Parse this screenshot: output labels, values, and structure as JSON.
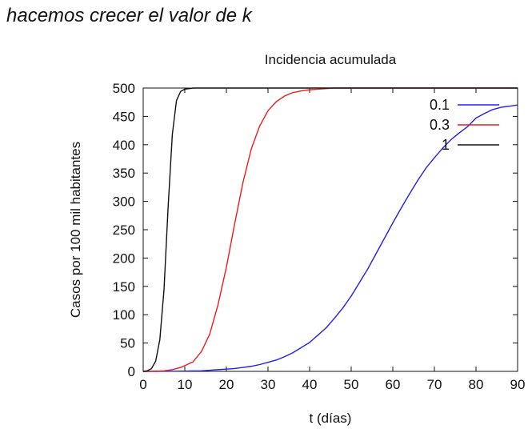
{
  "page": {
    "heading": "hacemos crecer el valor de k"
  },
  "chart_data": {
    "type": "line",
    "title": "Incidencia acumulada",
    "xlabel": "t (días)",
    "ylabel": "Casos por 100 mil habitantes",
    "xlim": [
      0,
      90
    ],
    "ylim": [
      0,
      500
    ],
    "xticks": [
      0,
      10,
      20,
      30,
      40,
      50,
      60,
      70,
      80,
      90
    ],
    "yticks": [
      0,
      50,
      100,
      150,
      200,
      250,
      300,
      350,
      400,
      450,
      500
    ],
    "grid": false,
    "legend_position": "top-right",
    "x": [
      0,
      1,
      2,
      3,
      4,
      5,
      6,
      7,
      8,
      9,
      10,
      12,
      14,
      16,
      18,
      20,
      22,
      24,
      26,
      28,
      30,
      32,
      34,
      36,
      38,
      40,
      42,
      44,
      46,
      48,
      50,
      52,
      54,
      56,
      58,
      60,
      62,
      64,
      66,
      68,
      70,
      72,
      74,
      76,
      78,
      80,
      82,
      84,
      86,
      88,
      90
    ],
    "series": [
      {
        "name": "0.1",
        "color": "#2020ee",
        "values": [
          0,
          0,
          0,
          0,
          0.1,
          0.1,
          0.1,
          0.2,
          0.2,
          0.4,
          0.5,
          0.8,
          1,
          2,
          3,
          4,
          5,
          7,
          9,
          12,
          16,
          20,
          26,
          33,
          42,
          51,
          64,
          77,
          94,
          112,
          133,
          157,
          181,
          208,
          235,
          262,
          288,
          313,
          337,
          359,
          377,
          394,
          409,
          421,
          432,
          447,
          455,
          462,
          466,
          468,
          470
        ]
      },
      {
        "name": "0.3",
        "color": "#ee1c1c",
        "values": [
          0,
          0.1,
          0.2,
          0.4,
          0.6,
          1,
          2,
          3,
          5,
          7,
          10,
          17,
          35,
          66,
          118,
          184,
          261,
          334,
          393,
          433,
          460,
          476,
          486,
          492,
          495,
          497,
          498,
          499,
          500,
          500,
          500,
          500,
          500,
          500,
          500,
          500,
          500,
          500,
          500,
          500,
          500,
          500,
          500,
          500,
          500,
          500,
          500,
          500,
          500,
          500,
          500
        ]
      },
      {
        "name": "1",
        "color": "#111111",
        "values": [
          0,
          1,
          5,
          18,
          56,
          144,
          291,
          418,
          478,
          494,
          498,
          500,
          500,
          500,
          500,
          500,
          500,
          500,
          500,
          500,
          500,
          500,
          500,
          500,
          500,
          500,
          500,
          500,
          500,
          500,
          500,
          500,
          500,
          500,
          500,
          500,
          500,
          500,
          500,
          500,
          500,
          500,
          500,
          500,
          500,
          500,
          500,
          500,
          500,
          500,
          500
        ]
      }
    ]
  }
}
